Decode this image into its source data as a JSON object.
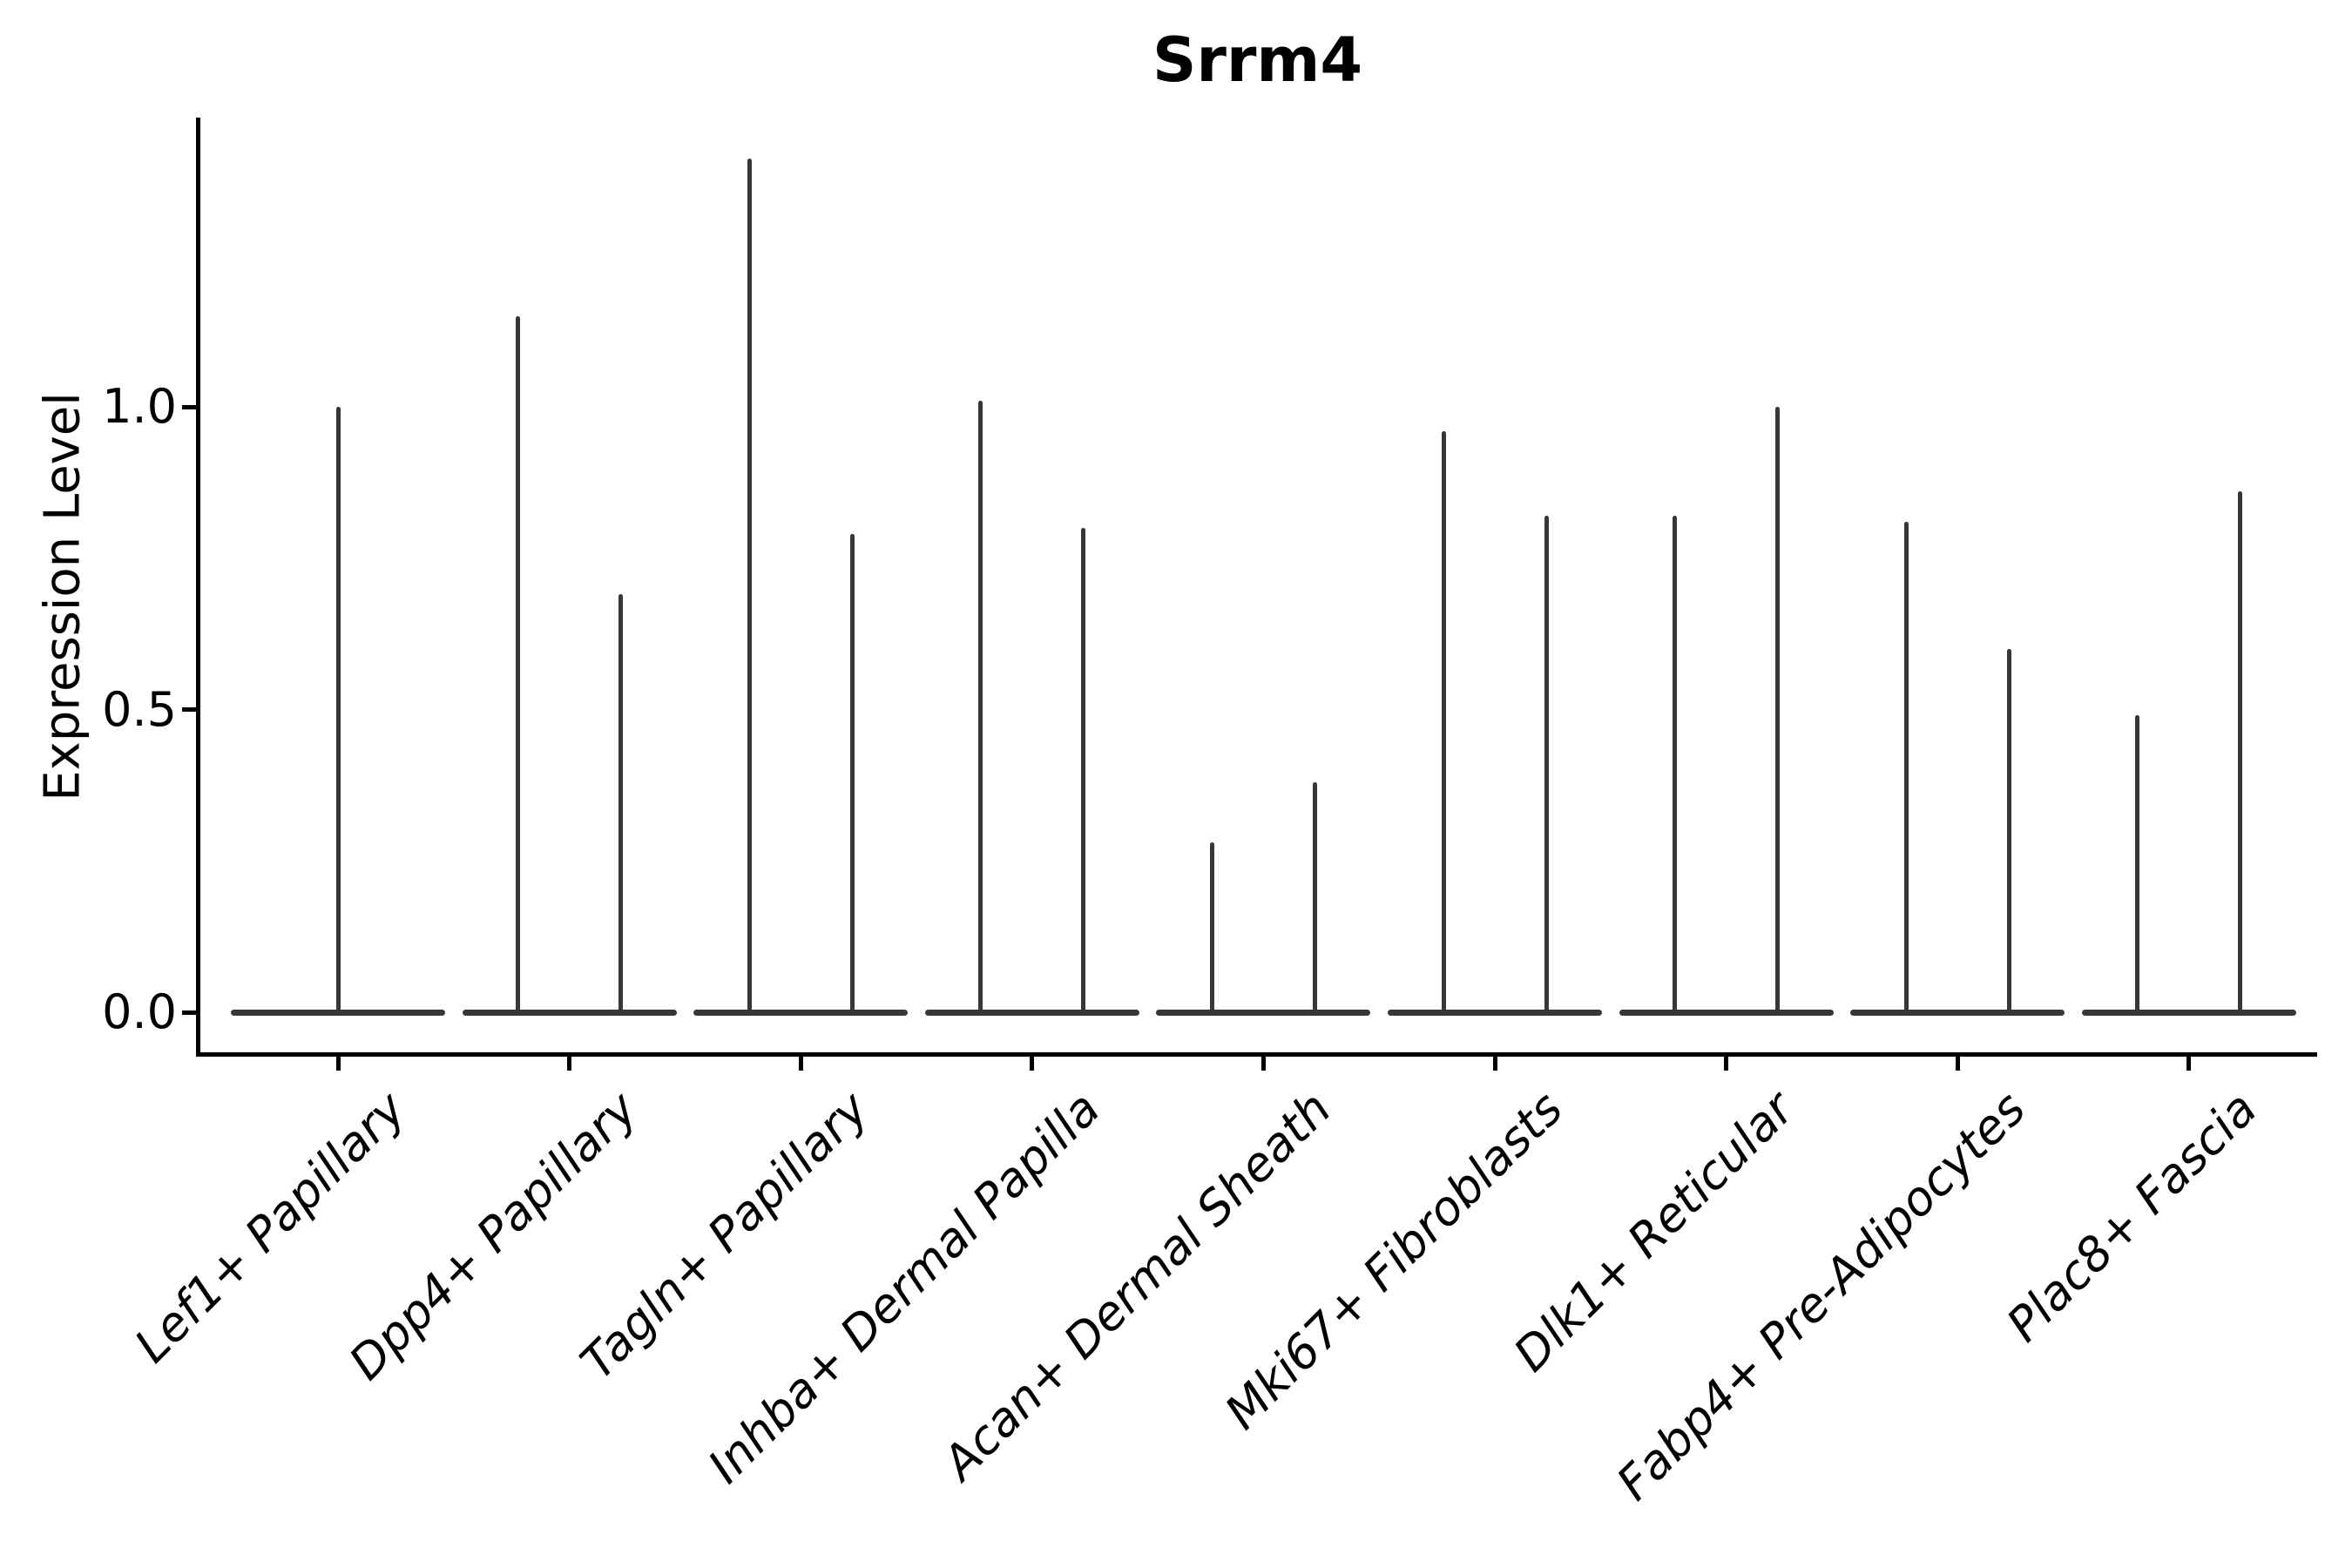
{
  "chart_data": {
    "type": "violin",
    "title": "Srrm4",
    "ylabel": "Expression Level",
    "xlabel": "",
    "ytick_labels": [
      "0.0",
      "0.5",
      "1.0"
    ],
    "ytick_values": [
      0.0,
      0.5,
      1.0
    ],
    "ylim": [
      -0.07,
      1.48
    ],
    "grid": false,
    "legend": "none",
    "violin_style": "each violin is flat at expression 0 (wide base line) with a thin vertical spike rising at its center to the maximum expression value",
    "categories": [
      "Lef1+ Papillary",
      "Dpp4+ Papillary",
      "Tagln+ Papillary",
      "Inhba+ Dermal Papilla",
      "Acan+ Dermal Sheath",
      "Mki67+ Fibroblasts",
      "Dlk1+ Reticular",
      "Fabp4+ Pre-Adipocytes",
      "Plac8+ Fascia"
    ],
    "series": [
      {
        "category": "Lef1+ Papillary",
        "spike_maxima": [
          1.0
        ]
      },
      {
        "category": "Dpp4+ Papillary",
        "spike_maxima": [
          1.15,
          0.69
        ]
      },
      {
        "category": "Tagln+ Papillary",
        "spike_maxima": [
          1.41,
          0.79
        ]
      },
      {
        "category": "Inhba+ Dermal Papilla",
        "spike_maxima": [
          1.01,
          0.8
        ]
      },
      {
        "category": "Acan+ Dermal Sheath",
        "spike_maxima": [
          0.28,
          0.38
        ]
      },
      {
        "category": "Mki67+ Fibroblasts",
        "spike_maxima": [
          0.96,
          0.82
        ]
      },
      {
        "category": "Dlk1+ Reticular",
        "spike_maxima": [
          0.82,
          1.0
        ]
      },
      {
        "category": "Fabp4+ Pre-Adipocytes",
        "spike_maxima": [
          0.81,
          0.6
        ]
      },
      {
        "category": "Plac8+ Fascia",
        "spike_maxima": [
          0.49,
          0.86
        ]
      }
    ]
  },
  "style": {
    "violin_color": "#373737",
    "axis_color": "#000000",
    "background_color": "#ffffff"
  }
}
